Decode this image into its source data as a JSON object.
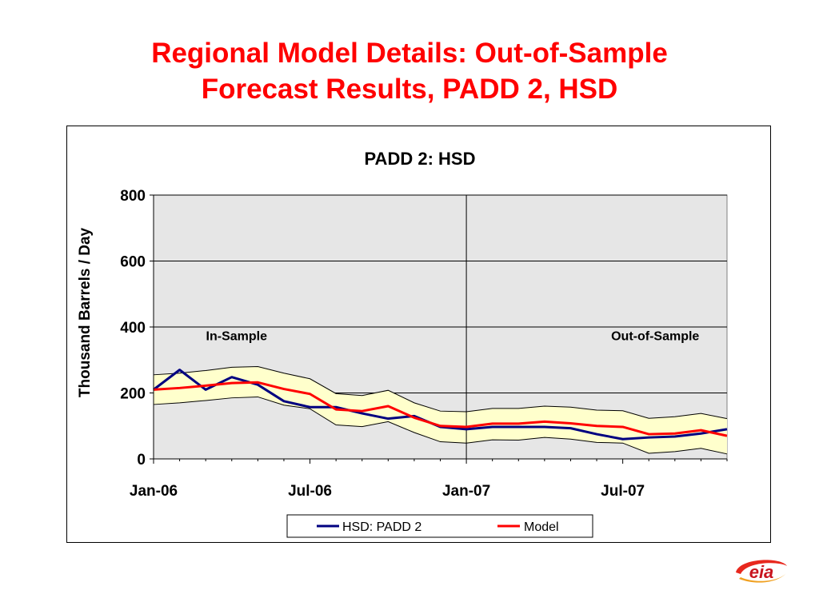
{
  "slide": {
    "title_line1": "Regional Model Details:  Out-of-Sample",
    "title_line2": "Forecast Results, PADD 2, HSD",
    "logo_text": "eia"
  },
  "chart_data": {
    "type": "line",
    "title": "PADD 2:  HSD",
    "xlabel": "",
    "ylabel": "Thousand Barrels / Day",
    "ylim": [
      0,
      800
    ],
    "yticks": [
      0,
      200,
      400,
      600,
      800
    ],
    "x_tick_labels": [
      "Jan-06",
      "Jul-06",
      "Jan-07",
      "Jul-07"
    ],
    "x": [
      "Jan-06",
      "Feb-06",
      "Mar-06",
      "Apr-06",
      "May-06",
      "Jun-06",
      "Jul-06",
      "Aug-06",
      "Sep-06",
      "Oct-06",
      "Nov-06",
      "Dec-06",
      "Jan-07",
      "Feb-07",
      "Mar-07",
      "Apr-07",
      "May-07",
      "Jun-07",
      "Jul-07",
      "Aug-07",
      "Sep-07",
      "Oct-07",
      "Nov-07"
    ],
    "grid": true,
    "legend_position": "bottom",
    "annotations": [
      {
        "text": "In-Sample"
      },
      {
        "text": "Out-of-Sample"
      }
    ],
    "divider_at": "Jan-07",
    "series": [
      {
        "name": "HSD:  PADD 2",
        "color": "#000080",
        "values": [
          210,
          270,
          210,
          248,
          225,
          175,
          157,
          157,
          138,
          122,
          130,
          97,
          90,
          97,
          97,
          97,
          93,
          75,
          60,
          65,
          68,
          77,
          90
        ]
      },
      {
        "name": "Model",
        "color": "#ff0000",
        "values": [
          210,
          215,
          222,
          230,
          232,
          212,
          197,
          150,
          145,
          160,
          125,
          100,
          97,
          107,
          107,
          113,
          108,
          100,
          97,
          75,
          77,
          87,
          70
        ]
      }
    ],
    "band": {
      "color": "#ffffcc",
      "upper": [
        255,
        260,
        268,
        278,
        280,
        260,
        243,
        198,
        192,
        208,
        170,
        145,
        143,
        153,
        153,
        160,
        157,
        148,
        146,
        123,
        128,
        138,
        122
      ],
      "lower": [
        165,
        170,
        177,
        185,
        188,
        163,
        152,
        103,
        98,
        113,
        80,
        52,
        48,
        58,
        57,
        65,
        60,
        50,
        48,
        17,
        22,
        32,
        15
      ]
    }
  }
}
